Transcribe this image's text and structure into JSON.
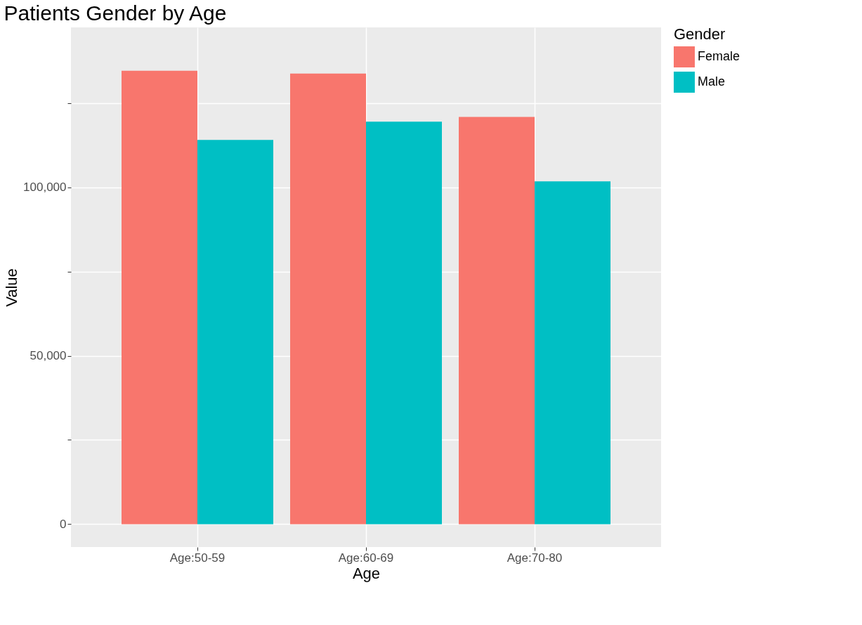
{
  "chart_data": {
    "type": "bar",
    "title": "Patients Gender by Age",
    "xlabel": "Age",
    "ylabel": "Value",
    "legend_title": "Gender",
    "categories": [
      "Age:50-59",
      "Age:60-69",
      "Age:70-80"
    ],
    "series": [
      {
        "name": "Female",
        "color": "#f8766d",
        "values": [
          134600,
          133800,
          120900
        ]
      },
      {
        "name": "Male",
        "color": "#00bfc4",
        "values": [
          114100,
          119500,
          101800
        ]
      }
    ],
    "ylim": [
      -6800,
      147500
    ],
    "yticks": [
      0,
      {
        "value": 25000,
        "label": null
      },
      {
        "value": 50000,
        "label": "50,000"
      },
      {
        "value": 75000,
        "label": null
      },
      {
        "value": 100000,
        "label": "100,000"
      },
      {
        "value": 125000,
        "label": null
      }
    ],
    "grid": true,
    "legend": "right"
  }
}
